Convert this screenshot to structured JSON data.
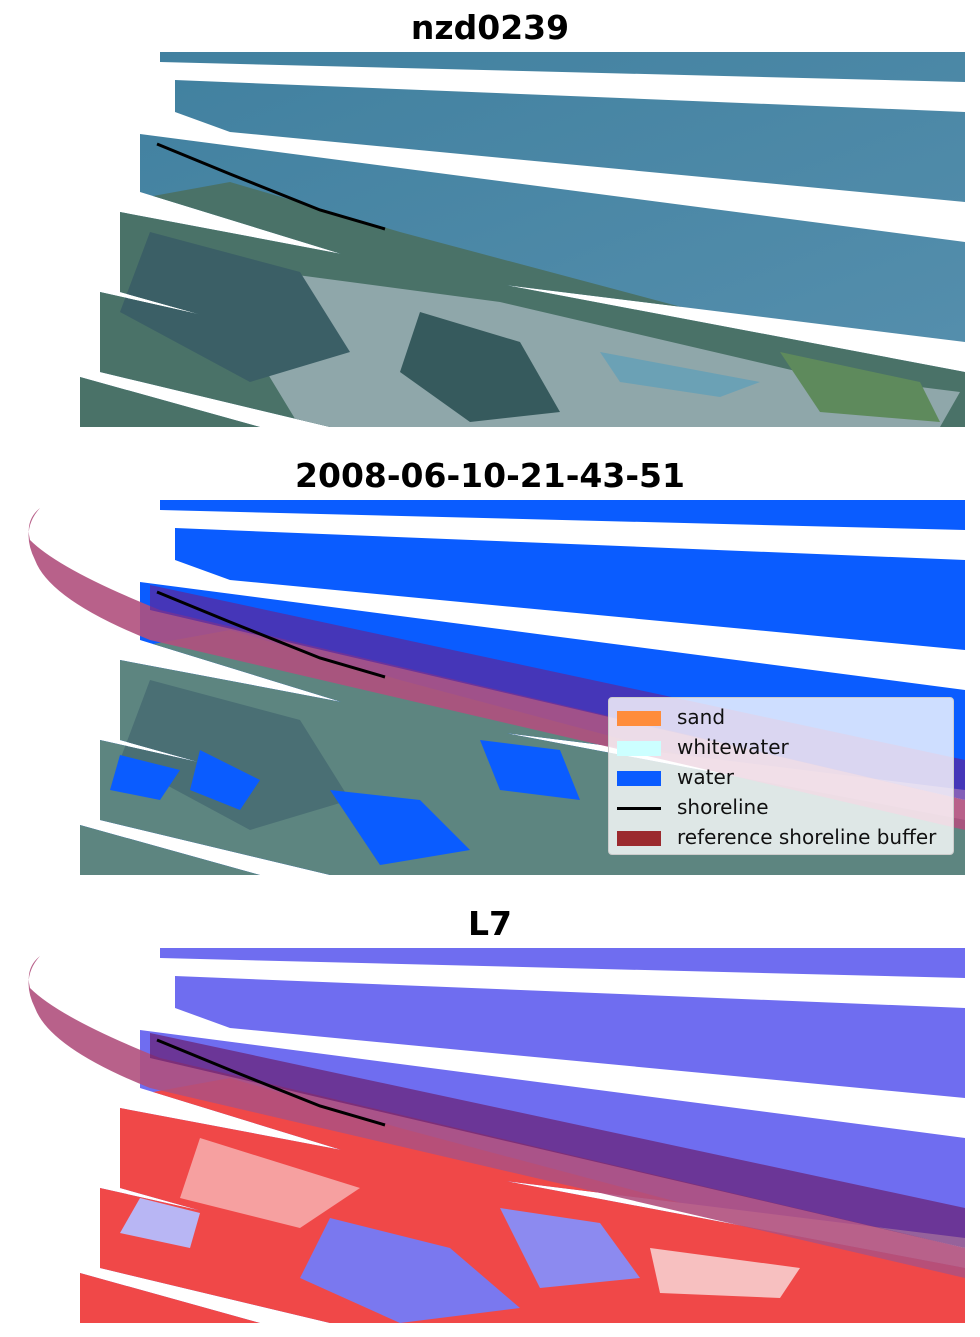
{
  "panels": [
    {
      "title": "nzd0239",
      "layer": "rgb-composite"
    },
    {
      "title": "2008-06-10-21-43-51",
      "layer": "classified-overlay"
    },
    {
      "title": "L7",
      "layer": "water-index"
    }
  ],
  "legend": {
    "items": [
      {
        "label": "sand",
        "color": "#ff8c3a",
        "kind": "patch"
      },
      {
        "label": "whitewater",
        "color": "#ccffff",
        "kind": "patch"
      },
      {
        "label": "water",
        "color": "#0a5cff",
        "kind": "patch"
      },
      {
        "label": "shoreline",
        "color": "#000000",
        "kind": "line"
      },
      {
        "label": "reference shoreline buffer",
        "color": "#9b2a2e",
        "kind": "patch"
      }
    ]
  },
  "colors": {
    "ocean": "#4a87a8",
    "land_forest": "#3e6a62",
    "land_light": "#9fb7c0",
    "water_class": "#0a5cff",
    "buffer": "#b0507d",
    "index_water": "#6f6df0",
    "index_land": "#f03b3b"
  }
}
